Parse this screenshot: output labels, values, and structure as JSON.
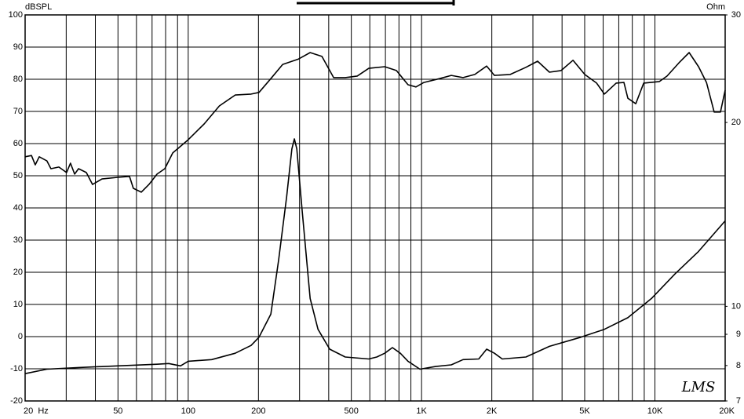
{
  "chart_data": {
    "type": "line",
    "y_label": "dBSPL",
    "y2_label": "Ohm",
    "logo": "LMS",
    "xlog": true,
    "xlim": [
      20,
      20000
    ],
    "xticks": [
      {
        "value": 20,
        "label": "20  Hz"
      },
      50,
      100,
      200,
      500,
      {
        "value": 1000,
        "label": "1K"
      },
      {
        "value": 2000,
        "label": "2K"
      },
      {
        "value": 5000,
        "label": "5K"
      },
      {
        "value": 10000,
        "label": "10K"
      },
      {
        "value": 20000,
        "label": "20K"
      }
    ],
    "xgrid": [
      30,
      40,
      60,
      70,
      80,
      90,
      300,
      400,
      600,
      700,
      800,
      900,
      3000,
      4000,
      6000,
      7000,
      8000,
      9000
    ],
    "ylim": [
      -20,
      100
    ],
    "yticks": [
      -20,
      -10,
      0,
      10,
      20,
      30,
      40,
      50,
      60,
      70,
      80,
      90,
      100
    ],
    "y2log": true,
    "y2lim": [
      7,
      30
    ],
    "y2ticks": [
      30,
      20,
      10,
      9,
      8,
      7
    ],
    "grid": true,
    "series": [
      {
        "color": "#000000",
        "x": [
          20,
          21.3,
          22.1,
          23,
          24.8,
          25.8,
          27.9,
          30.1,
          31.3,
          32.6,
          33.9,
          36.6,
          38.9,
          42.7,
          49.9,
          56,
          58.2,
          62.9,
          67.9,
          73.5,
          79.4,
          85.8,
          100,
          117,
          136,
          159,
          186,
          201,
          226,
          254,
          297,
          333,
          374,
          420,
          471,
          530,
          594,
          695,
          780,
          875,
          946,
          1023,
          1194,
          1340,
          1506,
          1691,
          1901,
          2052,
          2398,
          2800,
          3142,
          3531,
          3963,
          4457,
          5003,
          5624,
          6072,
          6823,
          7365,
          7656,
          8278,
          8952,
          10448,
          11272,
          12677,
          14021,
          15382,
          16634,
          17952,
          19099,
          20000
        ],
        "values": [
          55.9,
          56.3,
          53.4,
          55.9,
          54.6,
          52.2,
          52.7,
          51,
          53.9,
          50.5,
          52.2,
          51,
          47.3,
          49,
          49.5,
          49.8,
          46.1,
          44.9,
          47.3,
          50.5,
          52.2,
          57.1,
          61.2,
          66.1,
          71.7,
          75.1,
          75.4,
          75.9,
          80.2,
          84.6,
          86.3,
          88.3,
          87.1,
          80.5,
          80.5,
          81,
          83.4,
          83.9,
          82.7,
          78.3,
          77.6,
          79,
          80.2,
          81.2,
          80.5,
          81.5,
          84.1,
          81.2,
          81.5,
          83.7,
          85.6,
          82.2,
          82.7,
          85.9,
          81.5,
          78.8,
          75.4,
          78.8,
          79,
          74.1,
          72.4,
          78.8,
          79.3,
          81,
          85.1,
          88.3,
          83.9,
          79,
          69.8,
          69.8,
          76.6
        ]
      },
      {
        "color": "#000000",
        "axis": "y2",
        "x": [
          20,
          24.8,
          33.9,
          49.9,
          73.5,
          82.5,
          92.7,
          100,
          126,
          159,
          186,
          201,
          226,
          244,
          264,
          278,
          285,
          292,
          308,
          333,
          360,
          404,
          471,
          594,
          643,
          695,
          750,
          811,
          875,
          984,
          1148,
          1340,
          1506,
          1758,
          1901,
          2052,
          2218,
          2800,
          3531,
          4810,
          6072,
          7656,
          9665,
          12190,
          15382,
          20000
        ],
        "values": [
          7.76,
          7.89,
          7.94,
          7.99,
          8.04,
          8.06,
          7.99,
          8.13,
          8.18,
          8.38,
          8.63,
          8.9,
          9.71,
          11.9,
          15.1,
          18.1,
          18.8,
          18.1,
          14.3,
          10.3,
          9.17,
          8.51,
          8.26,
          8.2,
          8.26,
          8.38,
          8.56,
          8.38,
          8.13,
          7.89,
          7.97,
          8.02,
          8.18,
          8.2,
          8.51,
          8.38,
          8.2,
          8.26,
          8.6,
          8.9,
          9.17,
          9.58,
          10.3,
          11.3,
          12.3,
          13.8
        ]
      }
    ]
  }
}
